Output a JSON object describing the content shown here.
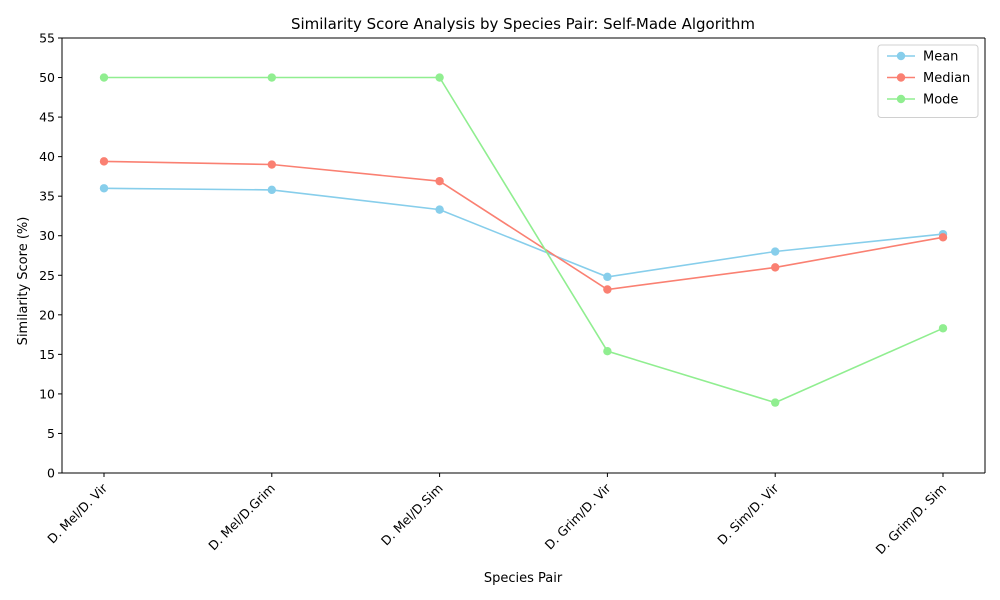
{
  "chart_data": {
    "type": "line",
    "title": "Similarity Score Analysis by Species Pair: Self-Made Algorithm",
    "xlabel": "Species Pair",
    "ylabel": "Similarity Score (%)",
    "categories": [
      "D. Mel/D. Vir",
      "D. Mel/D.Grim",
      "D. Mel/D.Sim",
      "D. Grim/D. Vir",
      "D. Sim/D. Vir",
      "D. Grim/D. Sim"
    ],
    "ylim": [
      0,
      55
    ],
    "yticks": [
      0,
      5,
      10,
      15,
      20,
      25,
      30,
      35,
      40,
      45,
      50,
      55
    ],
    "grid": false,
    "legend_position": "top-right",
    "series": [
      {
        "name": "Mean",
        "color": "#87ceeb",
        "values": [
          36.0,
          35.8,
          33.3,
          24.8,
          28.0,
          30.2
        ]
      },
      {
        "name": "Median",
        "color": "#fa8072",
        "values": [
          39.4,
          39.0,
          36.9,
          23.2,
          26.0,
          29.8
        ]
      },
      {
        "name": "Mode",
        "color": "#90ee90",
        "values": [
          50.0,
          50.0,
          50.0,
          15.4,
          8.9,
          18.3
        ]
      }
    ]
  }
}
